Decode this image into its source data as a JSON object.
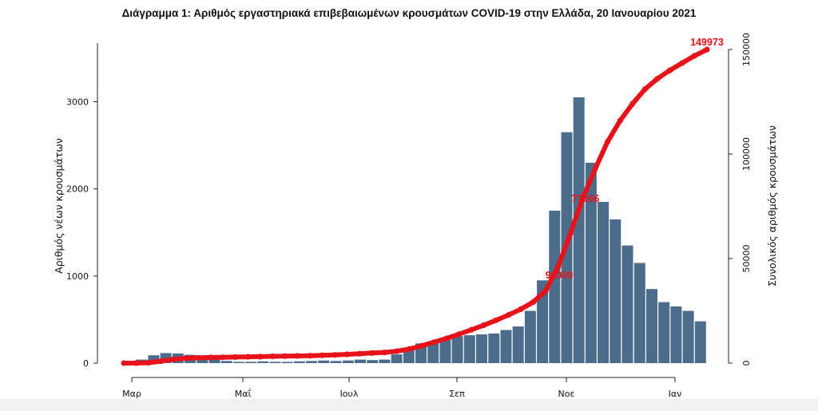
{
  "chart_data": {
    "type": "bar",
    "title": "Διάγραμμα 1: Αριθμός εργαστηριακά επιβεβαιωμένων κρουσμάτων COVID-19 στην Ελλάδα, 20 Ιανουαρίου 2021",
    "ylabel": "Αριθμός νέων κρουσμάτων",
    "y2label": "Συνολικός αριθμός κρουσμάτων",
    "ylim": [
      0,
      3600
    ],
    "y2lim": [
      0,
      150000
    ],
    "yticks": [
      "0",
      "1000",
      "2000",
      "3000"
    ],
    "y2ticks": [
      "0",
      "50000",
      "100000",
      "150000"
    ],
    "xticks": [
      "Μαρ",
      "Μαΐ",
      "Ιουλ",
      "Σεπ",
      "Νοε",
      "Ιαν"
    ],
    "bar_color": "#4c6c8c",
    "line_color": "#e8121a",
    "series": [
      {
        "type": "bar",
        "x_range": [
          "2020-02-26",
          "2021-01-20"
        ],
        "weekly_values": [
          2,
          40,
          90,
          115,
          110,
          95,
          75,
          55,
          25,
          15,
          15,
          20,
          15,
          15,
          20,
          25,
          30,
          25,
          30,
          40,
          35,
          40,
          100,
          170,
          225,
          250,
          290,
          310,
          320,
          330,
          340,
          380,
          420,
          600,
          950,
          1750,
          2650,
          3050,
          2300,
          1850,
          1650,
          1350,
          1150,
          850,
          700,
          650,
          600,
          480
        ]
      },
      {
        "type": "line",
        "label_start": "0",
        "label_end": "149973",
        "weekly_cumulative": [
          0,
          5,
          200,
          900,
          1800,
          2350,
          2550,
          2700,
          2800,
          2900,
          3000,
          3100,
          3250,
          3350,
          3450,
          3550,
          3750,
          3950,
          4200,
          4500,
          4850,
          5100,
          5700,
          6700,
          8300,
          10000,
          11800,
          13800,
          15900,
          18100,
          20500,
          23000,
          25800,
          29200,
          34700,
          46000,
          62000,
          79000,
          93000,
          106000,
          116000,
          124000,
          131000,
          136000,
          140000,
          143500,
          147000,
          149973
        ]
      }
    ],
    "point_labels": [
      "96009",
      "73666"
    ]
  }
}
